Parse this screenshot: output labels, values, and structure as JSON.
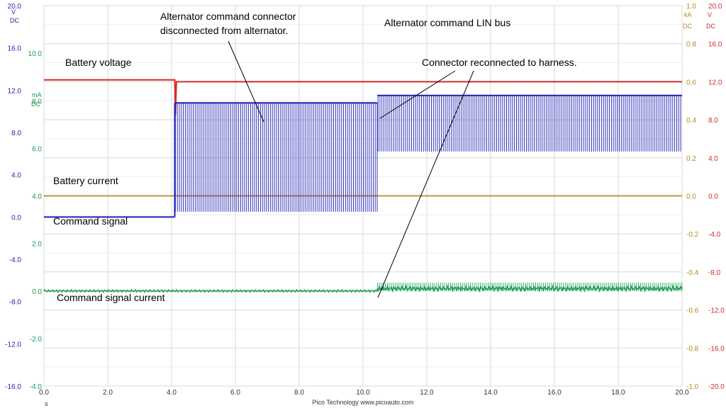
{
  "chart_data": {
    "type": "line",
    "title": "Alternator command LIN bus",
    "footer": "Pico Technology   www.picoauto.com",
    "x_axis": {
      "unit": "s",
      "range": [
        0,
        20
      ],
      "ticks": [
        "0.0",
        "2.0",
        "4.0",
        "6.0",
        "8.0",
        "10.0",
        "12.0",
        "14.0",
        "16.0",
        "18.0",
        "20.0"
      ]
    },
    "axes": {
      "blue_v": {
        "name": "V",
        "coupling": "DC",
        "color": "#1f1fb4",
        "range": [
          -16,
          20
        ],
        "ticks": [
          "20.0",
          "16.0",
          "12.0",
          "8.0",
          "4.0",
          "0.0",
          "-4.0",
          "-8.0",
          "-12.0",
          "-16.0"
        ]
      },
      "green_ma": {
        "name": "mA",
        "coupling": "DC",
        "color": "#1a9c55",
        "range": [
          -4,
          12
        ],
        "ticks": [
          "10.0",
          "8.0",
          "6.0",
          "4.0",
          "2.0",
          "0.0",
          "-2.0",
          "-4.0"
        ]
      },
      "gold_ka": {
        "name": "kA",
        "coupling": "DC",
        "color": "#b08d1e",
        "range": [
          -1,
          1
        ],
        "ticks": [
          "1.0",
          "0.8",
          "0.6",
          "0.4",
          "0.2",
          "0.0",
          "-0.2",
          "-0.4",
          "-0.6",
          "-0.8",
          "-1.0"
        ]
      },
      "red_v": {
        "name": "V",
        "coupling": "DC",
        "color": "#d42a2a",
        "range": [
          -20,
          20
        ],
        "ticks": [
          "20.0",
          "16.0",
          "12.0",
          "8.0",
          "4.0",
          "0.0",
          "-4.0",
          "-8.0",
          "-12.0",
          "-16.0",
          "-20.0"
        ]
      }
    },
    "series": [
      {
        "name": "Battery voltage",
        "axis": "red_v",
        "color": "#d42a2a",
        "x": [
          0,
          4.1,
          4.12,
          4.15,
          20
        ],
        "y": [
          12.2,
          12.2,
          8.5,
          12.0,
          12.0
        ]
      },
      {
        "name": "Battery current",
        "axis": "gold_ka",
        "color": "#b08d1e",
        "x": [
          0,
          20
        ],
        "y": [
          0.0,
          0.0
        ]
      },
      {
        "name": "Command signal",
        "axis": "blue_v",
        "color": "#1f1fb4",
        "baseline": 0.0,
        "step_time": 4.1,
        "segments": [
          {
            "x_range": [
              4.1,
              10.45
            ],
            "high": 10.8,
            "low": 0.5,
            "pulse_period": 0.062
          },
          {
            "x_range": [
              10.45,
              20
            ],
            "high": 11.5,
            "low": 6.2,
            "pulse_period": 0.062
          }
        ]
      },
      {
        "name": "Command signal current",
        "axis": "green_ma",
        "color": "#1a9c55",
        "segments": [
          {
            "x_range": [
              0,
              10.45
            ],
            "value": 0.0
          },
          {
            "x_range": [
              10.45,
              20
            ],
            "value": 0.1
          }
        ]
      }
    ],
    "annotations": [
      "Battery voltage",
      "Alternator command connector disconnected from alternator.",
      "Alternator command LIN bus",
      "Connector reconnected to harness.",
      "Battery current",
      "Command signal",
      "Command signal current"
    ],
    "grid": true
  }
}
